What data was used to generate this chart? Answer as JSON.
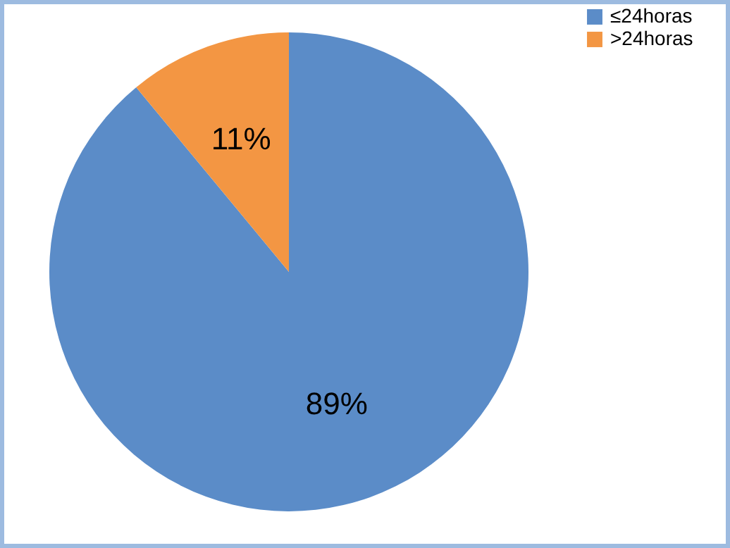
{
  "chart_data": {
    "type": "pie",
    "categories": [
      "≤24horas",
      ">24horas"
    ],
    "values": [
      89,
      11
    ],
    "colors": [
      "#5b8cc8",
      "#f39643"
    ],
    "data_labels": true,
    "value_labels": [
      "89%",
      "11%"
    ],
    "legend": "right"
  }
}
